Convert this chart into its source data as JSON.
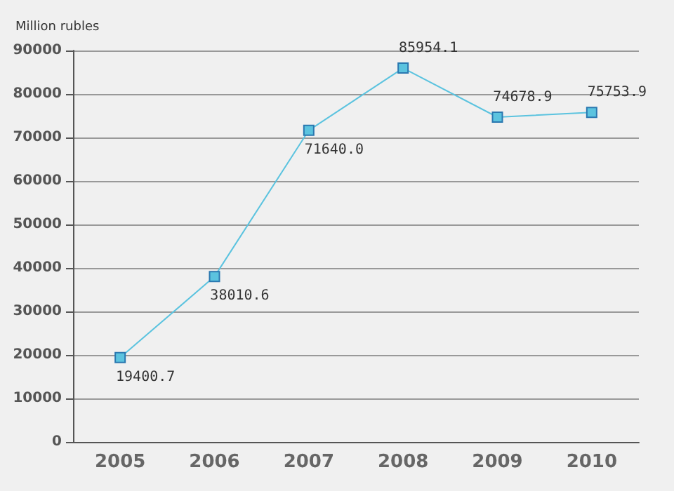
{
  "chart_data": {
    "type": "line",
    "ylabel": "Million rubles",
    "categories": [
      "2005",
      "2006",
      "2007",
      "2008",
      "2009",
      "2010"
    ],
    "series": [
      {
        "color": "#5bc3df",
        "values": [
          19400.7,
          38010.6,
          71640.0,
          85954.1,
          74678.9,
          75753.9
        ],
        "value_labels": [
          "19400.7",
          "38010.6",
          "71640.0",
          "85954.1",
          "74678.9",
          "75753.9"
        ]
      }
    ],
    "ylim": [
      0,
      90000
    ],
    "yticks": [
      0,
      10000,
      20000,
      30000,
      40000,
      50000,
      60000,
      70000,
      80000,
      90000
    ],
    "grid": "y",
    "marker": "square",
    "line_style": "solid"
  }
}
